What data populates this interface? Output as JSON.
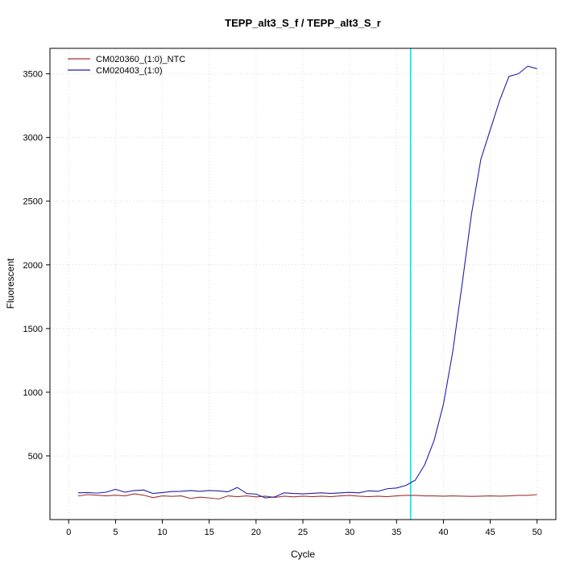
{
  "window": {
    "title": "TEPP_alt3_S_f / TEPP_alt3_S_r"
  },
  "chart_data": {
    "type": "line",
    "title": "TEPP_alt3_S_f / TEPP_alt3_S_r",
    "xlabel": "Cycle",
    "ylabel": "Fluorescent",
    "xlim": [
      -2,
      52
    ],
    "ylim": [
      0,
      3700
    ],
    "x_ticks": [
      0,
      5,
      10,
      15,
      20,
      25,
      30,
      35,
      40,
      45,
      50
    ],
    "y_ticks": [
      500,
      1000,
      1500,
      2000,
      2500,
      3000,
      3500
    ],
    "grid": true,
    "grid_color": "#d9d9d9",
    "legend_position": "top-left",
    "threshold_line": {
      "x": 36.5,
      "color": "#00e5ee",
      "label": "threshold-cycle-line"
    },
    "x": [
      1,
      2,
      3,
      4,
      5,
      6,
      7,
      8,
      9,
      10,
      11,
      12,
      13,
      14,
      15,
      16,
      17,
      18,
      19,
      20,
      21,
      22,
      23,
      24,
      25,
      26,
      27,
      28,
      29,
      30,
      31,
      32,
      33,
      34,
      35,
      36,
      37,
      38,
      39,
      40,
      41,
      42,
      43,
      44,
      45,
      46,
      47,
      48,
      49,
      50
    ],
    "series": [
      {
        "name": "CM020360_(1:0)_NTC",
        "color": "#a03232",
        "values": [
          185,
          196,
          192,
          186,
          192,
          186,
          202,
          192,
          172,
          186,
          182,
          186,
          166,
          176,
          170,
          162,
          186,
          180,
          186,
          178,
          184,
          174,
          184,
          178,
          184,
          180,
          184,
          180,
          186,
          190,
          184,
          180,
          184,
          180,
          186,
          190,
          190,
          186,
          186,
          184,
          186,
          184,
          182,
          184,
          186,
          184,
          186,
          190,
          190,
          196
        ]
      },
      {
        "name": "CM020403_(1:0)",
        "color": "#1f1fa6",
        "values": [
          210,
          212,
          208,
          215,
          238,
          215,
          228,
          232,
          205,
          212,
          220,
          222,
          228,
          222,
          228,
          225,
          218,
          252,
          205,
          200,
          170,
          178,
          210,
          205,
          202,
          206,
          210,
          205,
          210,
          214,
          210,
          226,
          222,
          242,
          248,
          268,
          310,
          430,
          620,
          905,
          1320,
          1850,
          2400,
          2830,
          3060,
          3290,
          3480,
          3500,
          3560,
          3540
        ]
      }
    ]
  }
}
